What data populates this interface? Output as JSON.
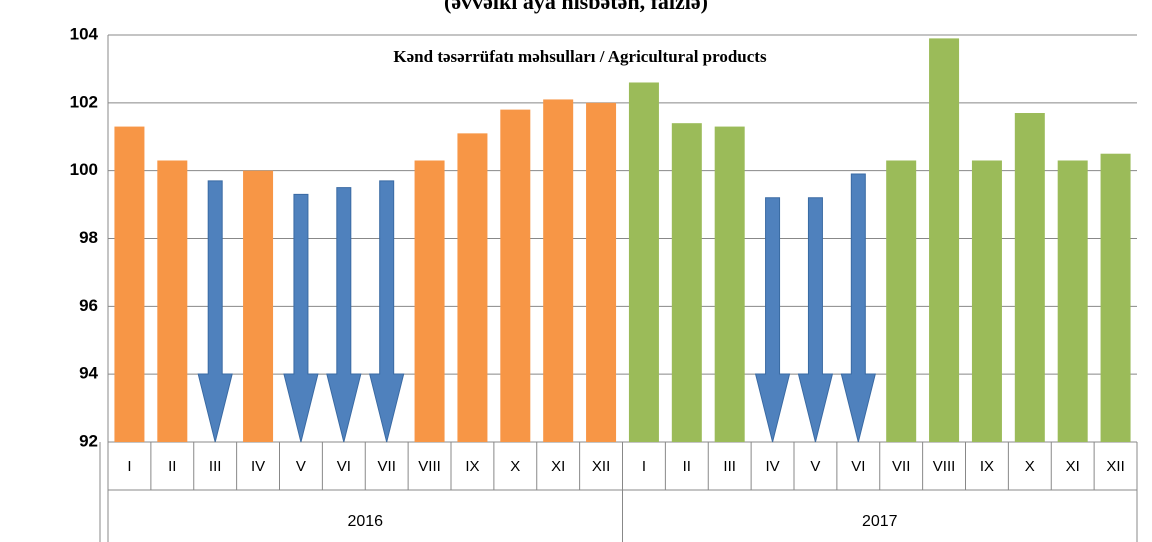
{
  "chart_data": {
    "type": "bar",
    "subtitle": "(əvvəlki aya nisbətən, faizlə)",
    "title": "Kənd təsərrüfatı məhsulları / Agricultural products",
    "categories": [
      "I",
      "II",
      "III",
      "IV",
      "V",
      "VI",
      "VII",
      "VIII",
      "IX",
      "X",
      "XI",
      "XII",
      "I",
      "II",
      "III",
      "IV",
      "V",
      "VI",
      "VII",
      "VIII",
      "IX",
      "X",
      "XI",
      "XII"
    ],
    "groups": [
      "2016",
      "2017"
    ],
    "values": [
      101.3,
      100.3,
      99.7,
      100.0,
      99.3,
      99.5,
      99.7,
      100.3,
      101.1,
      101.8,
      102.1,
      102.0,
      102.6,
      101.4,
      101.3,
      99.2,
      99.2,
      99.9,
      100.3,
      103.9,
      100.3,
      101.7,
      100.3,
      100.5
    ],
    "colors": [
      "#f79646",
      "#f79646",
      "#4f81bd",
      "#f79646",
      "#4f81bd",
      "#4f81bd",
      "#4f81bd",
      "#f79646",
      "#f79646",
      "#f79646",
      "#f79646",
      "#f79646",
      "#9bbb59",
      "#9bbb59",
      "#9bbb59",
      "#4f81bd",
      "#4f81bd",
      "#4f81bd",
      "#9bbb59",
      "#9bbb59",
      "#9bbb59",
      "#9bbb59",
      "#9bbb59",
      "#9bbb59"
    ],
    "arrow_color": "#4f81bd",
    "ylim": [
      92,
      104
    ],
    "yticks": [
      92,
      94,
      96,
      98,
      100,
      102,
      104
    ],
    "grid": true
  }
}
